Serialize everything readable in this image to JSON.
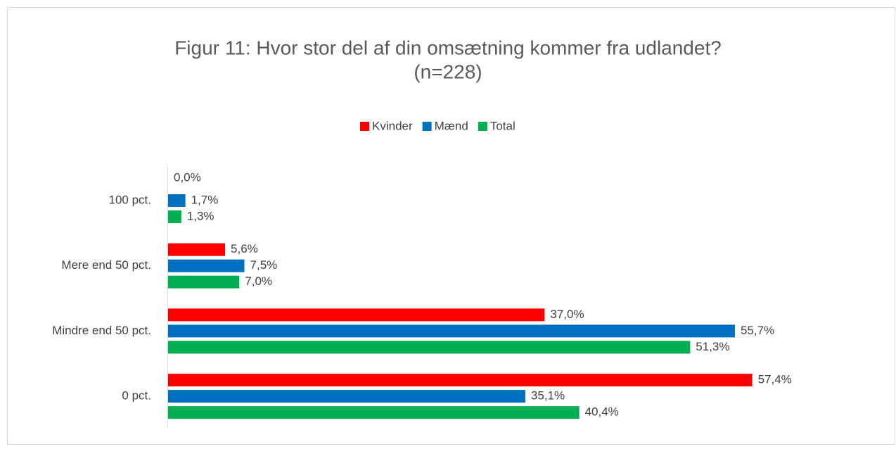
{
  "chart_data": {
    "type": "bar",
    "orientation": "horizontal",
    "title": "Figur 11: Hvor stor del af din omsætning kommer fra udlandet?",
    "subtitle": "(n=228)",
    "categories": [
      "100 pct.",
      "Mere end 50 pct.",
      "Mindre end 50 pct.",
      "0 pct."
    ],
    "series": [
      {
        "name": "Kvinder",
        "color": "#ff0000",
        "values": [
          0.0,
          5.6,
          37.0,
          57.4
        ],
        "value_labels": [
          "0,0%",
          "5,6%",
          "37,0%",
          "57,4%"
        ]
      },
      {
        "name": "Mænd",
        "color": "#0070c0",
        "values": [
          1.7,
          7.5,
          55.7,
          35.1
        ],
        "value_labels": [
          "1,7%",
          "7,5%",
          "55,7%",
          "35,1%"
        ]
      },
      {
        "name": "Total",
        "color": "#00b050",
        "values": [
          1.3,
          7.0,
          51.3,
          40.4
        ],
        "value_labels": [
          "1,3%",
          "7,0%",
          "51,3%",
          "40,4%"
        ]
      }
    ],
    "legend": "top"
  }
}
